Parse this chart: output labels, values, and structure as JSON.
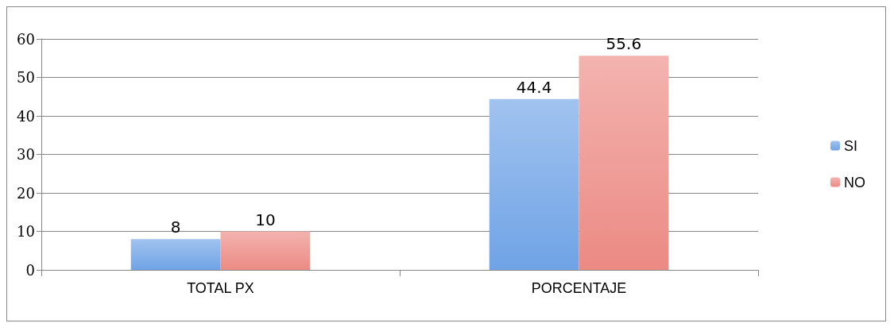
{
  "chart_data": {
    "type": "bar",
    "categories": [
      "TOTAL PX",
      "PORCENTAJE"
    ],
    "series": [
      {
        "name": "SI",
        "color": "#6fa3e6",
        "values": [
          8,
          44.4
        ]
      },
      {
        "name": "NO",
        "color": "#ec8a84",
        "values": [
          10,
          55.6
        ]
      }
    ],
    "ylim": [
      0,
      60
    ],
    "yticks": [
      0,
      10,
      20,
      30,
      40,
      50,
      60
    ],
    "grid": "y",
    "legend": "right",
    "data_labels": true
  }
}
